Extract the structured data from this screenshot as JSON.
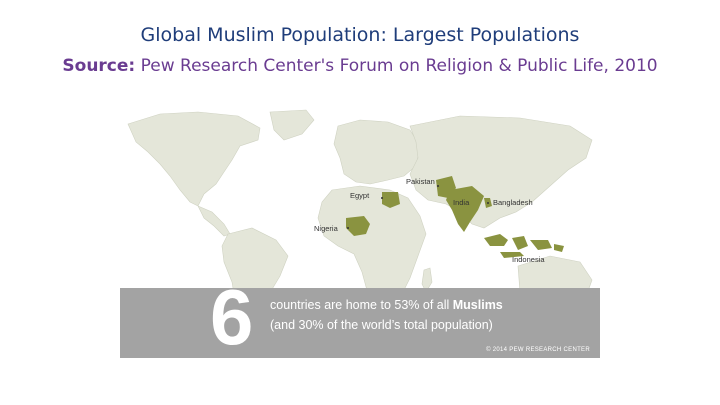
{
  "header": {
    "title": "Global Muslim Population: Largest Populations",
    "source_label": "Source:",
    "source_text": " Pew Research Center's Forum on Religion & Public Life, 2010"
  },
  "map": {
    "land_color": "#e4e6d9",
    "highlight_color": "#8a9340",
    "countries": [
      {
        "name": "Pakistan"
      },
      {
        "name": "Egypt"
      },
      {
        "name": "India"
      },
      {
        "name": "Bangladesh"
      },
      {
        "name": "Nigeria"
      },
      {
        "name": "Indonesia"
      }
    ]
  },
  "banner": {
    "number": "6",
    "line1_prefix": "countries are home to 53% of all ",
    "line1_bold": "Muslims",
    "line2": "(and 30% of the world’s total population)",
    "credit": "© 2014 PEW RESEARCH CENTER"
  }
}
